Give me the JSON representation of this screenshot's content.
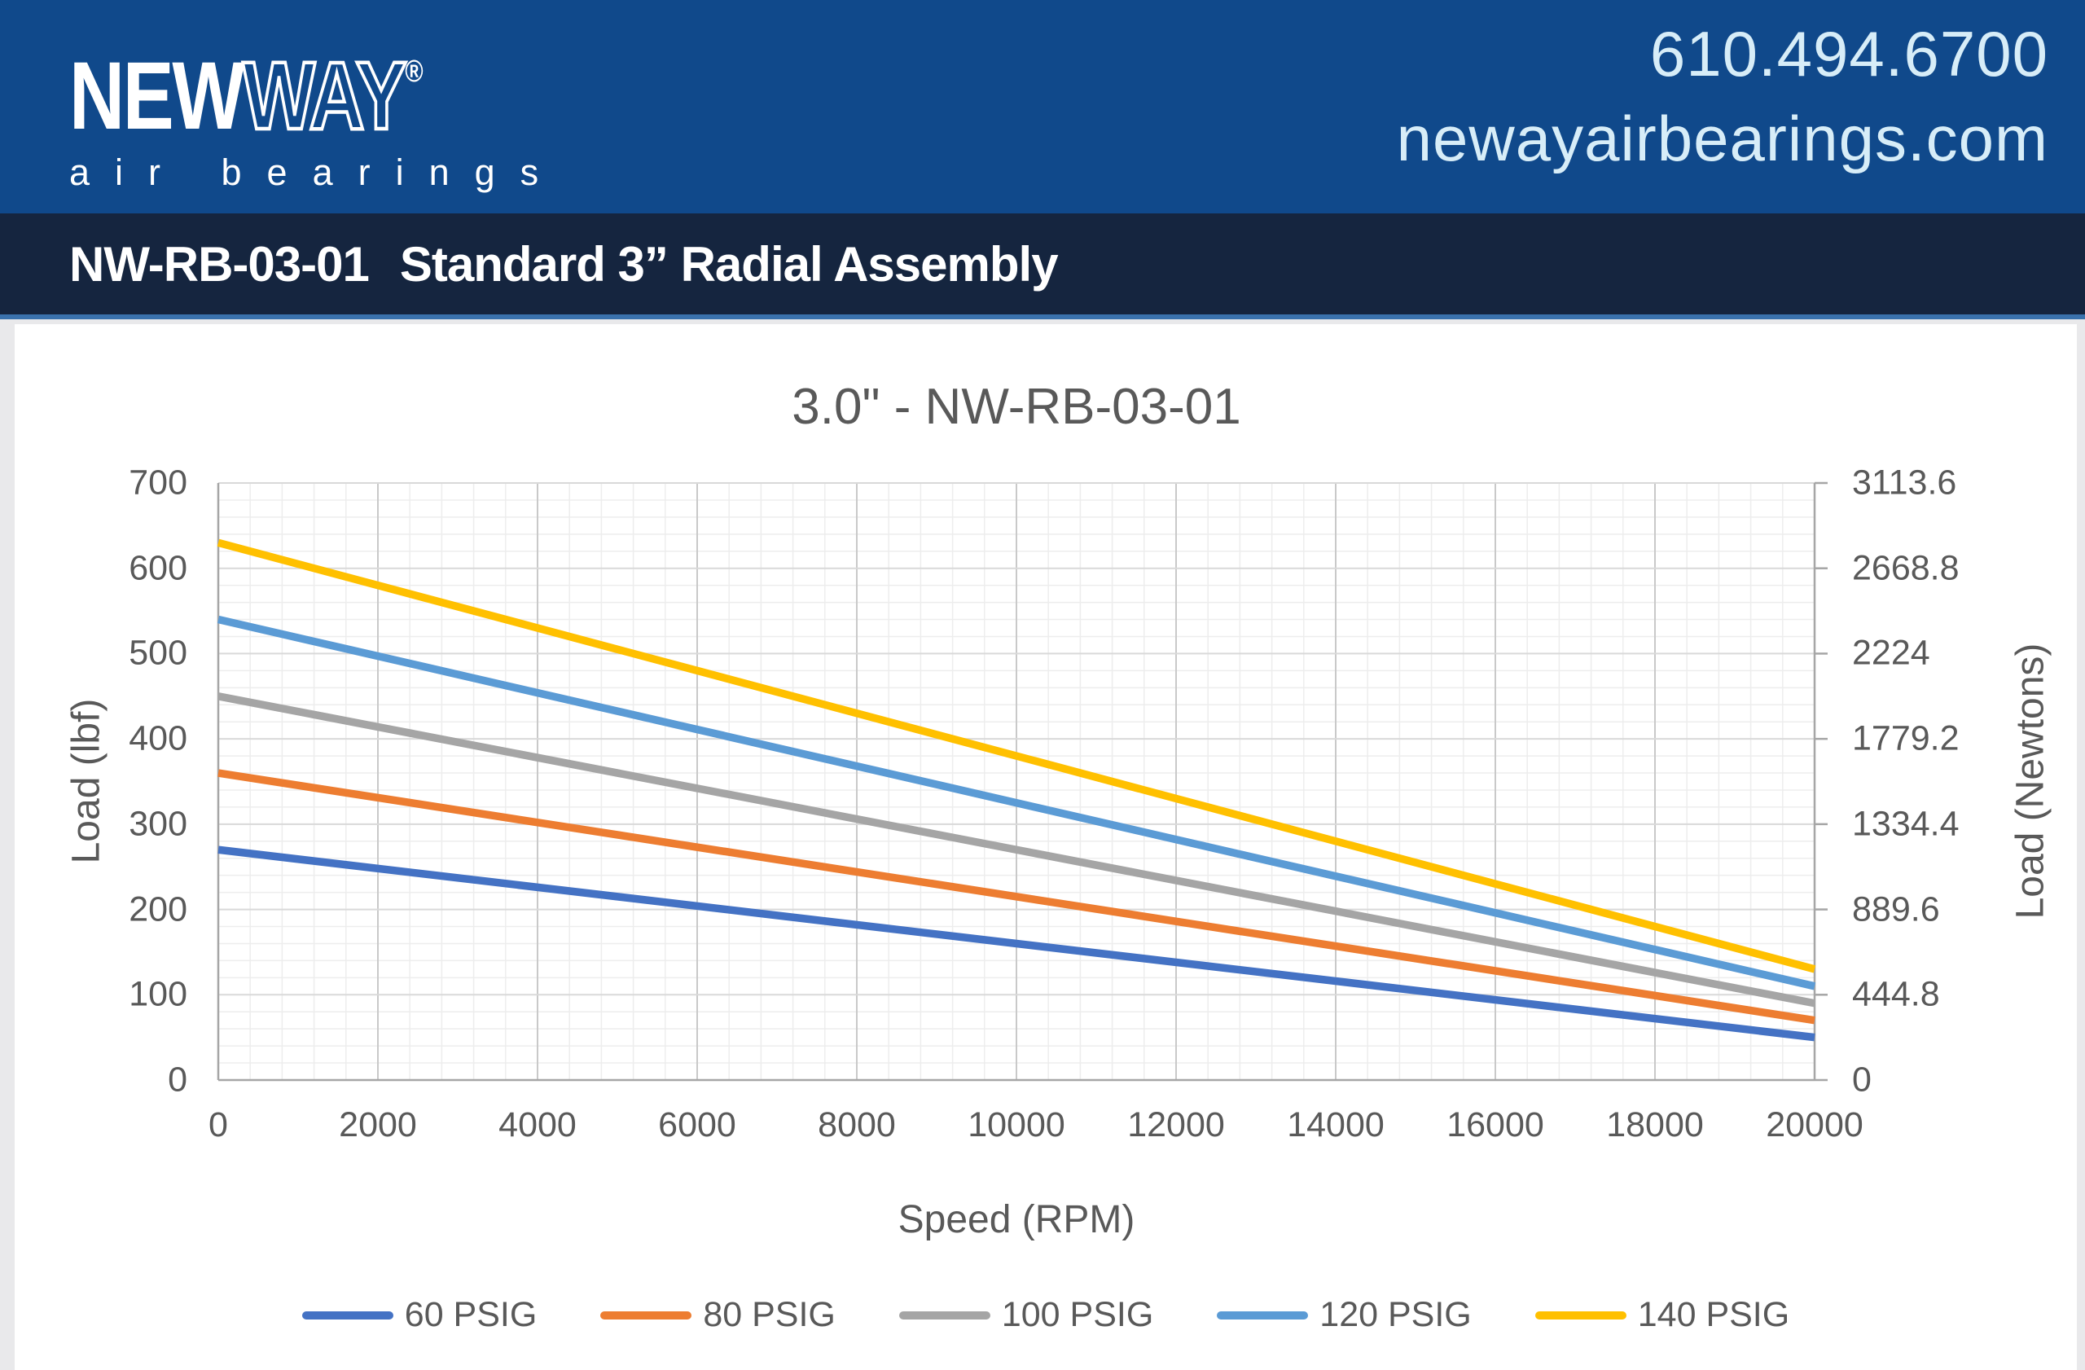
{
  "header": {
    "logo_new": "NEW",
    "logo_way": "WAY",
    "logo_registered": "®",
    "logo_tagline": "air bearings",
    "phone": "610.494.6700",
    "website": "newayairbearings.com"
  },
  "title_bar": {
    "part_number": "NW-RB-03-01",
    "description": "Standard 3” Radial Assembly"
  },
  "styles": {
    "banner_blue": "#10498B",
    "navy_bar": "#15253F",
    "rule_blue": "#3A72AD",
    "page_background": "#E9E9EB",
    "card_background": "#FFFFFF",
    "contact_text": "#D7EDF8",
    "chart_text_gray": "#595959",
    "axis_line_gray": "#A6A6A6",
    "grid_minor": "#EDEDED",
    "grid_major_horizontal": "#D9D9D9",
    "grid_major_vertical": "#C9C9C9"
  },
  "chart_data": {
    "type": "line",
    "title": "3.0\" -  NW-RB-03-01",
    "xlabel": "Speed (RPM)",
    "ylabel_left": "Load (lbf)",
    "ylabel_right": "Load (Newtons)",
    "xlim": [
      0,
      20000
    ],
    "ylim_left": [
      0,
      700
    ],
    "x_ticks": [
      0,
      2000,
      4000,
      6000,
      8000,
      10000,
      12000,
      14000,
      16000,
      18000,
      20000
    ],
    "y_ticks_left": [
      0,
      100,
      200,
      300,
      400,
      500,
      600,
      700
    ],
    "y_ticks_right_labels": [
      "0",
      "444.8",
      "889.6",
      "1334.4",
      "1779.2",
      "2224",
      "2668.8",
      "3113.6"
    ],
    "x_minor_step": 400,
    "y_minor_step": 20,
    "grid": true,
    "legend_position": "bottom",
    "x": [
      0,
      20000
    ],
    "series": [
      {
        "name": "60 PSIG",
        "color": "#4472C4",
        "values": [
          270,
          50
        ]
      },
      {
        "name": "80 PSIG",
        "color": "#ED7D31",
        "values": [
          360,
          70
        ]
      },
      {
        "name": "100 PSIG",
        "color": "#A5A5A5",
        "values": [
          450,
          90
        ]
      },
      {
        "name": "120 PSIG",
        "color": "#5B9BD5",
        "values": [
          540,
          110
        ]
      },
      {
        "name": "140 PSIG",
        "color": "#FFC000",
        "values": [
          630,
          130
        ]
      }
    ]
  }
}
